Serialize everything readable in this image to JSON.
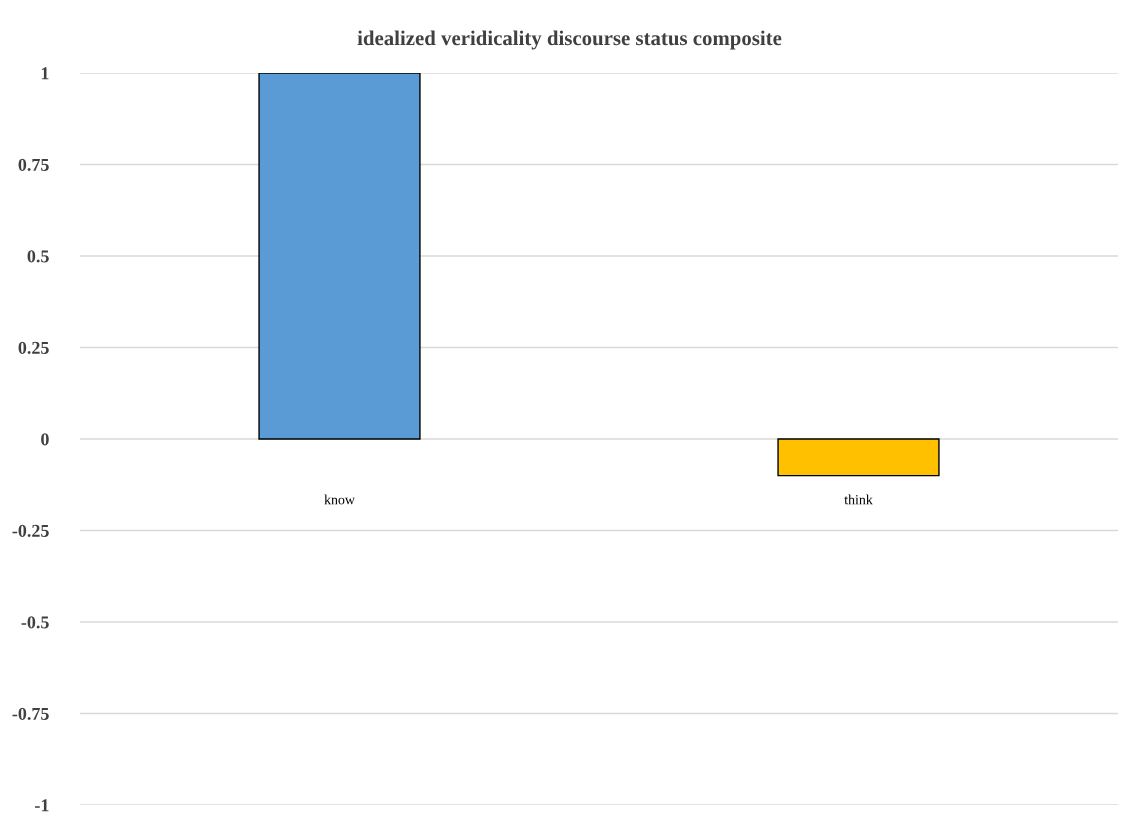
{
  "chart_data": {
    "type": "bar",
    "title": "idealized veridicality discourse status composite",
    "categories": [
      "know",
      "think"
    ],
    "values": [
      1,
      -0.1
    ],
    "colors": [
      "#5b9bd5",
      "#ffc000"
    ],
    "ylim": [
      -1,
      1
    ],
    "yticks": [
      {
        "value": -1,
        "label": "-1"
      },
      {
        "value": -0.75,
        "label": "-0.75"
      },
      {
        "value": -0.5,
        "label": "-0.5"
      },
      {
        "value": -0.25,
        "label": "-0.25"
      },
      0,
      0.25,
      0.5,
      0.75,
      1
    ],
    "grid": "y",
    "legend": false
  }
}
